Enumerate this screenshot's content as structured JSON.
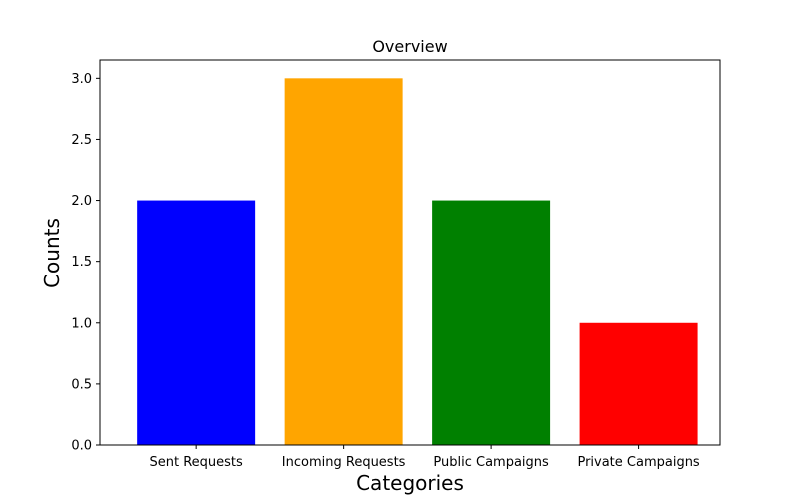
{
  "chart_data": {
    "type": "bar",
    "title": "Overview",
    "xlabel": "Categories",
    "ylabel": "Counts",
    "categories": [
      "Sent Requests",
      "Incoming Requests",
      "Public Campaigns",
      "Private Campaigns"
    ],
    "values": [
      2,
      3,
      2,
      1
    ],
    "colors": [
      "#0000ff",
      "#ffa500",
      "#008000",
      "#ff0000"
    ],
    "ylim": [
      0,
      3.15
    ],
    "yticks": [
      "0.0",
      "0.5",
      "1.0",
      "1.5",
      "2.0",
      "2.5",
      "3.0"
    ],
    "grid": false,
    "legend": "none"
  }
}
